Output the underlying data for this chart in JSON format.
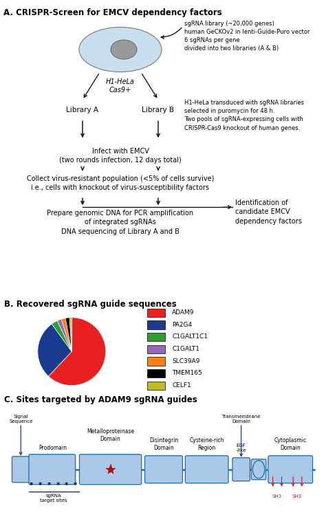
{
  "title_a": "A. CRISPR-Screen for EMCV dependency factors",
  "title_b": "B. Recovered sgRNA guide sequences",
  "title_c": "C. Sites targeted by ADAM9 sgRNA guides",
  "cell_label": "H1-HeLa\nCas9+",
  "cell_note": "sgRNA library (~20,000 genes)\nhuman GeCKOv2 in lenti-Guide-Puro vector\n6 sgRNAs per gene\ndivided into two libraries (A & B)",
  "lib_note": "H1-HeLa transduced with sgRNA libraries\nselected in puromycin for 48 h.\nTwo pools of sgRNA-expressing cells with\nCRISPR-Cas9 knockout of human genes.",
  "infect_label": "Infect with EMCV\n(two rounds infection, 12 days total)",
  "collect_label": "Collect virus-resistant population (<5% of cells survive)\ni.e., cells with knockout of virus-susceptibility factors",
  "prepare_label": "Prepare genomic DNA for PCR amplification\nof integrated sgRNAs\nDNA sequencing of Library A and B",
  "identify_label": "Identification of\ncandidate EMCV\ndependency factors",
  "pie_labels": [
    "ADAM9",
    "PA2G4",
    "C1GALT1C1",
    "C1GALT1",
    "SLC39A9",
    "TMEM165",
    "CELF1"
  ],
  "pie_sizes": [
    62,
    28,
    3,
    2,
    2,
    2,
    1
  ],
  "pie_colors": [
    "#e82020",
    "#1a3a8f",
    "#2ca02c",
    "#9467bd",
    "#ff7f0e",
    "#000000",
    "#bcbd22"
  ],
  "bg_color": "#ffffff",
  "box_color": "#aac8e8",
  "line_color": "#1a6ab5",
  "arrow_color": "#1a3a8f",
  "star_color": "#cc0000"
}
